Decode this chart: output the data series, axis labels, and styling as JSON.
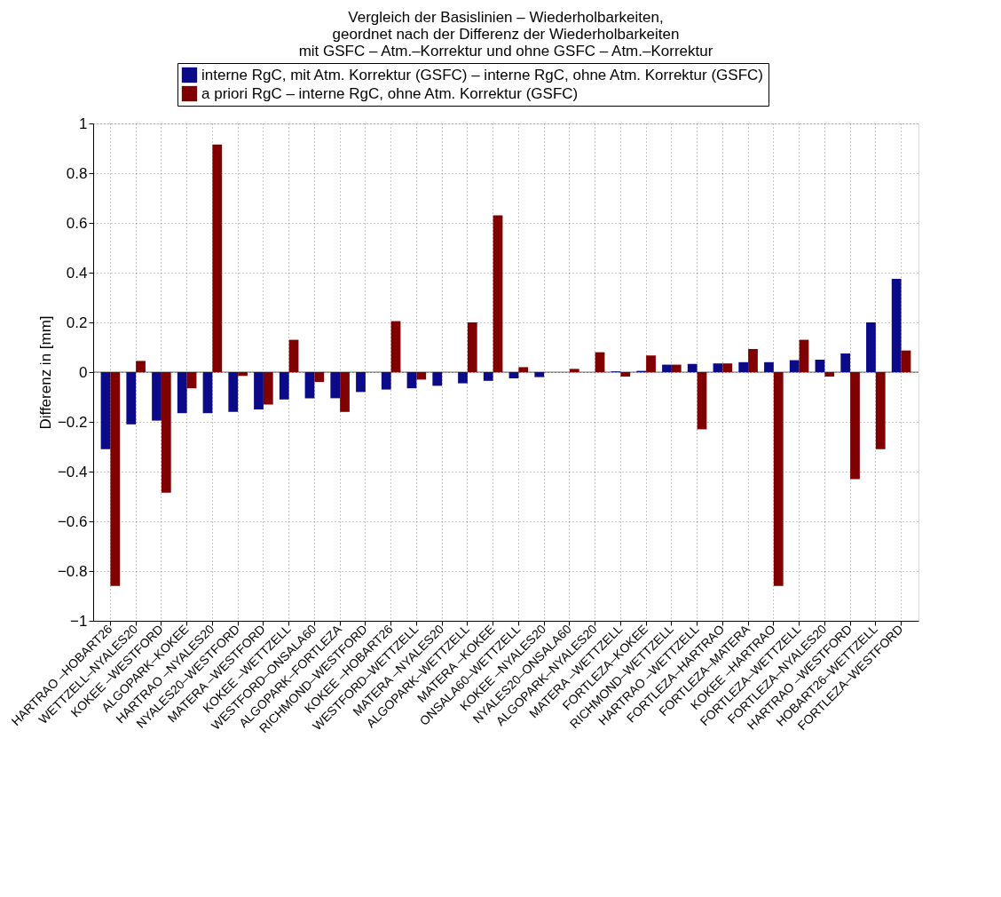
{
  "chart_data": {
    "type": "bar",
    "title": [
      "Vergleich der Basislinien – Wiederholbarkeiten,",
      "geordnet nach der Differenz der Wiederholbarkeiten",
      "mit GSFC – Atm.–Korrektur und ohne GSFC – Atm.–Korrektur"
    ],
    "ylabel": "Differenz in [mm]",
    "categories": [
      "HARTRAO –HOBART26",
      "WETTZELL–NYALES20",
      "KOKEE    –WESTFORD",
      "ALGOPARK–KOKEE",
      "HARTRAO –NYALES20",
      "NYALES20–WESTFORD",
      "MATERA   –WESTFORD",
      "KOKEE    –WETTZELL",
      "WESTFORD–ONSALA60",
      "ALGOPARK–FORTLEZA",
      "RICHMOND–WESTFORD",
      "KOKEE    –HOBART26",
      "WESTFORD–WETTZELL",
      "MATERA   –NYALES20",
      "ALGOPARK–WETTZELL",
      "MATERA   –KOKEE",
      "ONSALA60–WETTZELL",
      "KOKEE    –NYALES20",
      "NYALES20–ONSALA60",
      "ALGOPARK–NYALES20",
      "MATERA   –WETTZELL",
      "FORTLEZA–KOKEE",
      "RICHMOND–WETTZELL",
      "HARTRAO –WETTZELL",
      "FORTLEZA–HARTRAO",
      "FORTLEZA–MATERA",
      "KOKEE    –HARTRAO",
      "FORTLEZA–WETTZELL",
      "FORTLEZA–NYALES20",
      "HARTRAO –WESTFORD",
      "HOBART26–WETTZELL",
      "FORTLEZA–WESTFORD"
    ],
    "series": [
      {
        "name": "interne RgC, mit Atm. Korrektur (GSFC) – interne RgC, ohne Atm. Korrektur (GSFC)",
        "color": "#0b0b8a",
        "values": [
          -0.31,
          -0.21,
          -0.195,
          -0.165,
          -0.165,
          -0.16,
          -0.15,
          -0.11,
          -0.105,
          -0.105,
          -0.08,
          -0.07,
          -0.065,
          -0.055,
          -0.045,
          -0.035,
          -0.025,
          -0.02,
          0,
          0,
          0.003,
          0.005,
          0.03,
          0.033,
          0.035,
          0.04,
          0.04,
          0.048,
          0.05,
          0.075,
          0.2,
          0.375
        ]
      },
      {
        "name": "a priori RgC – interne RgC, ohne Atm. Korrektur (GSFC)",
        "color": "#800000",
        "values": [
          -0.86,
          0.045,
          -0.485,
          -0.065,
          0.915,
          -0.015,
          -0.13,
          0.13,
          -0.04,
          -0.16,
          0,
          0.205,
          -0.03,
          0,
          0.2,
          0.63,
          0.02,
          0,
          0.013,
          0.08,
          -0.018,
          0.067,
          0.03,
          -0.23,
          0.035,
          0.093,
          -0.86,
          0.13,
          -0.018,
          -0.43,
          -0.31,
          0.087
        ]
      }
    ],
    "ylim": [
      -1,
      1
    ],
    "yticks": [
      -1,
      -0.8,
      -0.6,
      -0.4,
      -0.2,
      0,
      0.2,
      0.4,
      0.6,
      0.8,
      1
    ],
    "grid": true,
    "legend": "top right"
  }
}
